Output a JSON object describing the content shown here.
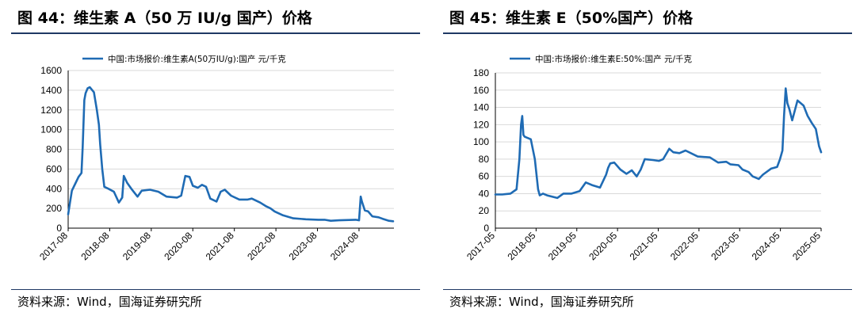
{
  "figures": [
    {
      "title": "图 44：维生素 A（50 万 IU/g 国产）价格",
      "source": "资料来源：Wind，国海证券研究所",
      "chart_data": {
        "type": "line",
        "title": "图 44：维生素 A（50 万 IU/g 国产）价格",
        "xlabel": "",
        "ylabel": "",
        "ylim": [
          0,
          1600
        ],
        "yticks": [
          0,
          200,
          400,
          600,
          800,
          1000,
          1200,
          1400,
          1600
        ],
        "xlim": [
          2017.58,
          2025.42
        ],
        "xtick_positions": [
          2017.58,
          2018.58,
          2019.58,
          2020.58,
          2021.58,
          2022.58,
          2023.58,
          2024.58
        ],
        "xtick_labels": [
          "2017-08",
          "2018-08",
          "2019-08",
          "2020-08",
          "2021-08",
          "2022-08",
          "2023-08",
          "2024-08"
        ],
        "grid": true,
        "legend_position": "top-left",
        "series": [
          {
            "name": "中国:市场报价:维生素A(50万IU/g):国产 元/千克",
            "color": "#1f6bb4",
            "x": [
              2017.58,
              2017.62,
              2017.67,
              2017.75,
              2017.83,
              2017.9,
              2017.93,
              2017.97,
              2018.0,
              2018.05,
              2018.1,
              2018.2,
              2018.27,
              2018.32,
              2018.35,
              2018.4,
              2018.45,
              2018.55,
              2018.68,
              2018.8,
              2018.88,
              2018.92,
              2019.0,
              2019.1,
              2019.25,
              2019.35,
              2019.55,
              2019.75,
              2019.95,
              2020.2,
              2020.3,
              2020.4,
              2020.5,
              2020.58,
              2020.7,
              2020.8,
              2020.9,
              2021.0,
              2021.15,
              2021.25,
              2021.35,
              2021.5,
              2021.7,
              2021.9,
              2022.0,
              2022.2,
              2022.35,
              2022.45,
              2022.55,
              2022.75,
              2023.0,
              2023.3,
              2023.6,
              2023.75,
              2023.9,
              2024.1,
              2024.5,
              2024.58,
              2024.62,
              2024.65,
              2024.72,
              2024.8,
              2024.9,
              2025.05,
              2025.15,
              2025.3,
              2025.4
            ],
            "values": [
              140,
              250,
              380,
              450,
              520,
              560,
              820,
              1300,
              1370,
              1420,
              1430,
              1380,
              1200,
              1050,
              850,
              600,
              420,
              400,
              370,
              260,
              310,
              530,
              460,
              400,
              320,
              380,
              390,
              370,
              320,
              310,
              330,
              530,
              520,
              430,
              410,
              440,
              420,
              300,
              270,
              370,
              390,
              330,
              290,
              290,
              300,
              260,
              220,
              200,
              170,
              130,
              100,
              90,
              85,
              85,
              75,
              80,
              85,
              80,
              320,
              270,
              180,
              170,
              120,
              110,
              95,
              75,
              70
            ]
          }
        ]
      }
    },
    {
      "title": "图 45：维生素 E（50%国产）价格",
      "source": "资料来源：Wind，国海证券研究所",
      "chart_data": {
        "type": "line",
        "title": "图 45：维生素 E（50%国产）价格",
        "xlabel": "",
        "ylabel": "",
        "ylim": [
          0,
          180
        ],
        "yticks": [
          0,
          20,
          40,
          60,
          80,
          100,
          120,
          140,
          160,
          180
        ],
        "xlim": [
          2017.33,
          2025.33
        ],
        "xtick_positions": [
          2017.33,
          2018.33,
          2019.33,
          2020.33,
          2021.33,
          2022.33,
          2023.33,
          2024.33,
          2025.33
        ],
        "xtick_labels": [
          "2017-05",
          "2018-05",
          "2019-05",
          "2020-05",
          "2021-05",
          "2022-05",
          "2023-05",
          "2024-05",
          "2025-05"
        ],
        "grid": true,
        "legend_position": "top-left",
        "series": [
          {
            "name": "中国:市场报价:维生素E:50%:国产 元/千克",
            "color": "#1f6bb4",
            "x": [
              2017.33,
              2017.5,
              2017.7,
              2017.85,
              2017.92,
              2017.96,
              2017.99,
              2018.02,
              2018.05,
              2018.1,
              2018.2,
              2018.3,
              2018.38,
              2018.42,
              2018.5,
              2018.6,
              2018.85,
              2019.0,
              2019.2,
              2019.4,
              2019.55,
              2019.7,
              2019.9,
              2020.05,
              2020.1,
              2020.15,
              2020.25,
              2020.4,
              2020.55,
              2020.68,
              2020.8,
              2020.9,
              2021.0,
              2021.2,
              2021.35,
              2021.45,
              2021.6,
              2021.7,
              2021.85,
              2022.0,
              2022.3,
              2022.6,
              2022.8,
              2023.0,
              2023.1,
              2023.3,
              2023.4,
              2023.55,
              2023.65,
              2023.8,
              2023.9,
              2024.1,
              2024.25,
              2024.32,
              2024.38,
              2024.42,
              2024.46,
              2024.5,
              2024.55,
              2024.62,
              2024.75,
              2024.9,
              2025.0,
              2025.1,
              2025.2,
              2025.28,
              2025.33
            ],
            "values": [
              39,
              39,
              40,
              45,
              80,
              120,
              130,
              108,
              106,
              105,
              103,
              80,
              45,
              38,
              40,
              38,
              35,
              40,
              40,
              43,
              53,
              50,
              47,
              62,
              70,
              75,
              76,
              68,
              63,
              67,
              60,
              68,
              80,
              79,
              78,
              80,
              92,
              88,
              87,
              90,
              83,
              82,
              76,
              77,
              74,
              73,
              68,
              65,
              60,
              57,
              62,
              69,
              71,
              80,
              90,
              130,
              162,
              145,
              138,
              125,
              148,
              142,
              130,
              122,
              115,
              95,
              88
            ]
          }
        ]
      }
    }
  ]
}
